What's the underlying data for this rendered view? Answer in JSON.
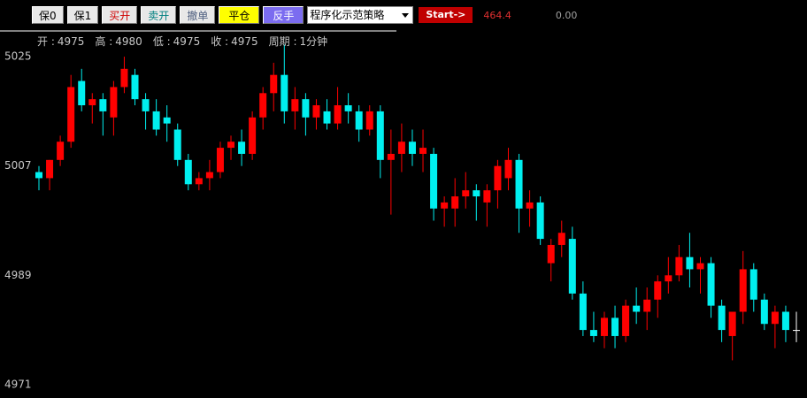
{
  "toolbar": {
    "buttons": [
      "保0",
      "保1",
      "买开",
      "卖开",
      "撤单",
      "平仓",
      "反手"
    ],
    "strategy": "程序化示范策略",
    "start": "Start->",
    "profit": "464.4",
    "position": "0.00"
  },
  "info": [
    {
      "label": "开 :",
      "value": "4975"
    },
    {
      "label": "高 :",
      "value": "4980"
    },
    {
      "label": "低 :",
      "value": "4975"
    },
    {
      "label": "收 :",
      "value": "4975"
    },
    {
      "label": "周期 :",
      "value": "1分钟"
    }
  ],
  "chart_data": {
    "type": "candlestick",
    "open": [
      5006,
      5005,
      5008,
      5011,
      5021,
      5017,
      5018,
      5015,
      5020,
      5022,
      5018,
      5016,
      5015,
      5013,
      5008,
      5004,
      5005,
      5006,
      5010,
      5011,
      5009,
      5015,
      5019,
      5022,
      5016,
      5018,
      5015,
      5016,
      5014,
      5017,
      5016,
      5013,
      5016,
      5008,
      5009,
      5011,
      5009,
      5009,
      5000,
      5000,
      5002,
      5003,
      5001,
      5003,
      5005,
      5008,
      5000,
      5001,
      4991,
      4994,
      4995,
      4986,
      4980,
      4979,
      4982,
      4979,
      4984,
      4983,
      4985,
      4988,
      4989,
      4992,
      4990,
      4991,
      4984,
      4979,
      4983,
      4990,
      4985,
      4981,
      4983,
      4980
    ],
    "high": [
      5007,
      5008,
      5012,
      5022,
      5023,
      5019,
      5019,
      5021,
      5025,
      5023,
      5019,
      5018,
      5017,
      5014,
      5009,
      5006,
      5008,
      5011,
      5012,
      5013,
      5016,
      5020,
      5024,
      5027,
      5020,
      5019,
      5018,
      5018,
      5020,
      5019,
      5017,
      5017,
      5017,
      5013,
      5014,
      5013,
      5013,
      5010,
      5002,
      5005,
      5006,
      5004,
      5004,
      5008,
      5010,
      5009,
      5003,
      5002,
      4995,
      4998,
      4997,
      4988,
      4983,
      4983,
      4984,
      4985,
      4987,
      4987,
      4989,
      4992,
      4994,
      4996,
      4992,
      4992,
      4985,
      4983,
      4993,
      4991,
      4986,
      4984,
      4984,
      4983
    ],
    "low": [
      5003,
      5003,
      5007,
      5010,
      5016,
      5014,
      5012,
      5012,
      5019,
      5017,
      5013,
      5012,
      5011,
      5007,
      5003,
      5003,
      5003,
      5005,
      5008,
      5007,
      5008,
      5013,
      5016,
      5014,
      5013,
      5012,
      5013,
      5013,
      5013,
      5014,
      5011,
      5012,
      5005,
      4999,
      5006,
      5007,
      5006,
      4998,
      4997,
      4997,
      5000,
      4998,
      4997,
      5000,
      5003,
      4996,
      4997,
      4994,
      4988,
      4992,
      4985,
      4979,
      4978,
      4977,
      4977,
      4978,
      4981,
      4980,
      4982,
      4986,
      4988,
      4987,
      4986,
      4982,
      4978,
      4975,
      4981,
      4983,
      4980,
      4977,
      4978,
      4978
    ],
    "close": [
      5005,
      5008,
      5011,
      5020,
      5017,
      5018,
      5016,
      5020,
      5023,
      5018,
      5016,
      5013,
      5014,
      5008,
      5004,
      5005,
      5006,
      5010,
      5011,
      5009,
      5015,
      5019,
      5022,
      5016,
      5018,
      5015,
      5017,
      5014,
      5017,
      5016,
      5013,
      5016,
      5008,
      5009,
      5011,
      5009,
      5010,
      5000,
      5001,
      5002,
      5003,
      5002,
      5003,
      5007,
      5008,
      5000,
      5001,
      4995,
      4994,
      4996,
      4986,
      4980,
      4979,
      4982,
      4979,
      4984,
      4983,
      4985,
      4988,
      4989,
      4992,
      4990,
      4991,
      4984,
      4980,
      4983,
      4990,
      4985,
      4981,
      4983,
      4980,
      4980
    ],
    "up_color": "#ff0000",
    "down_color": "#00f0f0",
    "flat_color": "#ffffff",
    "ylim": [
      4968.8,
      5028.8
    ],
    "yticks": [
      5025,
      5007,
      4989,
      4971
    ],
    "grid": false
  }
}
